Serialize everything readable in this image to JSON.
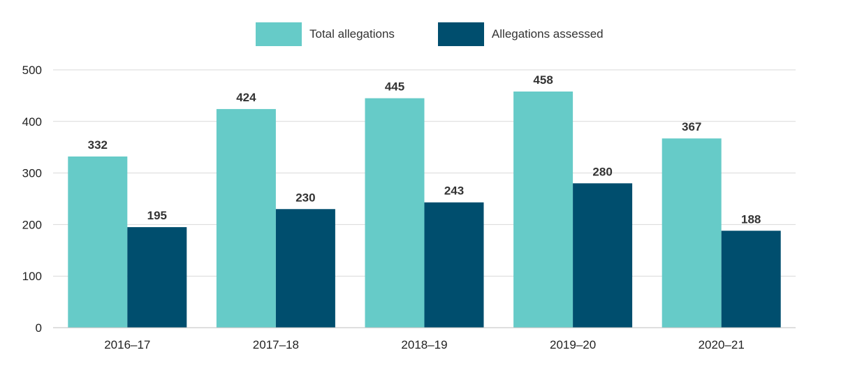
{
  "chart_data": {
    "type": "bar",
    "categories": [
      "2016–17",
      "2017–18",
      "2018–19",
      "2019–20",
      "2020–21"
    ],
    "series": [
      {
        "name": "Total allegations",
        "values": [
          332,
          424,
          445,
          458,
          367
        ],
        "color": "#66CBC8"
      },
      {
        "name": "Allegations assessed",
        "values": [
          195,
          230,
          243,
          280,
          188
        ],
        "color": "#004E6E"
      }
    ],
    "yticks": [
      0,
      100,
      200,
      300,
      400,
      500
    ],
    "ylim": [
      0,
      500
    ],
    "grid": true,
    "legend_position": "top-center",
    "title": "",
    "xlabel": "",
    "ylabel": ""
  }
}
